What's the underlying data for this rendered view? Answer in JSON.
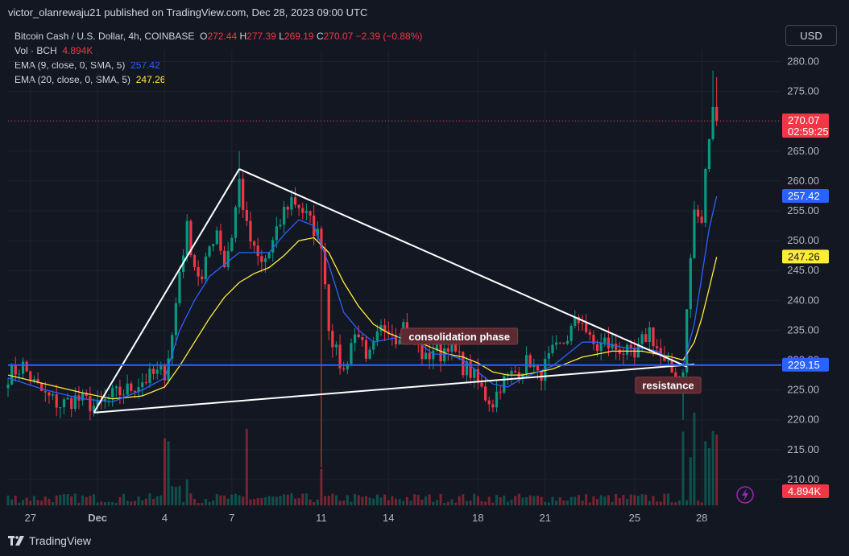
{
  "header": {
    "published": "victor_olanrewaju21 published on TradingView.com, Dec 28, 2023 09:00 UTC"
  },
  "currency_button": "USD",
  "legend": {
    "symbol": "Bitcoin Cash / U.S. Dollar, 4h, COINBASE",
    "o_label": "O",
    "o_value": "272.44",
    "h_label": "H",
    "h_value": "277.39",
    "l_label": "L",
    "l_value": "269.19",
    "c_label": "C",
    "c_value": "270.07",
    "change": "−2.39 (−0.88%)",
    "vol_label": "Vol · BCH",
    "vol_value": "4.894K",
    "ema9_label": "EMA (9, close, 0, SMA, 5)",
    "ema9_value": "257.42",
    "ema20_label": "EMA (20, close, 0, SMA, 5)",
    "ema20_value": "247.26"
  },
  "footer": {
    "brand": "TradingView"
  },
  "chart_data": {
    "type": "candlestick",
    "timeframe": "4h",
    "y_ticks": [
      "280.00",
      "275.00",
      "270.00",
      "265.00",
      "260.00",
      "255.00",
      "250.00",
      "245.00",
      "240.00",
      "235.00",
      "230.00",
      "225.00",
      "220.00",
      "215.00",
      "210.00"
    ],
    "ylim": [
      207.5,
      282
    ],
    "x_ticks": [
      {
        "label": "27",
        "idx": 6
      },
      {
        "label": "Dec",
        "idx": 24
      },
      {
        "label": "4",
        "idx": 42
      },
      {
        "label": "7",
        "idx": 60
      },
      {
        "label": "11",
        "idx": 84
      },
      {
        "label": "14",
        "idx": 102
      },
      {
        "label": "18",
        "idx": 126
      },
      {
        "label": "21",
        "idx": 144
      },
      {
        "label": "25",
        "idx": 168
      },
      {
        "label": "28",
        "idx": 186
      }
    ],
    "price_labels": {
      "last": {
        "value": "270.07",
        "countdown": "02:59:25",
        "color": "#f23645"
      },
      "ema9": {
        "value": "257.42",
        "color": "#2962ff"
      },
      "ema20": {
        "value": "247.26",
        "color": "#ffeb3b"
      },
      "hline": {
        "value": "229.15",
        "color": "#2962ff"
      },
      "volume": {
        "value": "4.894K",
        "color": "#f23645"
      }
    },
    "horizontal_line": 229.15,
    "last_price": 270.07,
    "annotations": [
      {
        "text": "consolidation phase",
        "idx": 121,
        "price": 234.0
      },
      {
        "text": "resistance",
        "idx": 177,
        "price": 225.8
      }
    ],
    "trendlines": [
      {
        "from": [
          23,
          221.2
        ],
        "to": [
          62,
          262
        ]
      },
      {
        "from": [
          62,
          262
        ],
        "to": [
          182,
          228.9
        ]
      },
      {
        "from": [
          23,
          221.2
        ],
        "to": [
          184,
          229.3
        ]
      }
    ],
    "waypoints": [
      [
        0,
        227.5
      ],
      [
        4,
        229
      ],
      [
        7,
        226
      ],
      [
        10,
        224
      ],
      [
        14,
        222.5
      ],
      [
        18,
        223.5
      ],
      [
        21,
        223
      ],
      [
        24,
        222
      ],
      [
        28,
        224
      ],
      [
        32,
        225
      ],
      [
        36,
        226.5
      ],
      [
        39,
        227.5
      ],
      [
        42,
        228
      ],
      [
        44,
        234
      ],
      [
        46,
        245
      ],
      [
        48,
        252
      ],
      [
        50,
        246
      ],
      [
        52,
        243
      ],
      [
        54,
        249
      ],
      [
        56,
        252
      ],
      [
        58,
        246
      ],
      [
        60,
        251
      ],
      [
        62,
        260
      ],
      [
        64,
        252
      ],
      [
        66,
        248
      ],
      [
        68,
        246
      ],
      [
        70,
        248
      ],
      [
        72,
        251
      ],
      [
        74,
        255
      ],
      [
        76,
        257
      ],
      [
        78,
        256
      ],
      [
        80,
        254
      ],
      [
        82,
        252
      ],
      [
        84,
        250
      ],
      [
        86,
        236
      ],
      [
        88,
        231
      ],
      [
        90,
        228
      ],
      [
        92,
        233
      ],
      [
        94,
        235
      ],
      [
        96,
        229
      ],
      [
        98,
        232
      ],
      [
        100,
        235
      ],
      [
        102,
        236
      ],
      [
        104,
        234
      ],
      [
        106,
        236
      ],
      [
        108,
        234
      ],
      [
        110,
        232
      ],
      [
        112,
        230
      ],
      [
        114,
        232
      ],
      [
        116,
        231
      ],
      [
        118,
        233
      ],
      [
        120,
        231
      ],
      [
        122,
        229
      ],
      [
        124,
        228
      ],
      [
        126,
        226
      ],
      [
        128,
        224
      ],
      [
        130,
        223
      ],
      [
        132,
        226
      ],
      [
        134,
        227
      ],
      [
        136,
        228
      ],
      [
        138,
        229
      ],
      [
        140,
        230
      ],
      [
        142,
        227
      ],
      [
        144,
        229
      ],
      [
        146,
        231
      ],
      [
        148,
        232
      ],
      [
        150,
        234
      ],
      [
        152,
        236
      ],
      [
        154,
        237
      ],
      [
        156,
        233
      ],
      [
        158,
        232
      ],
      [
        160,
        233
      ],
      [
        162,
        232
      ],
      [
        164,
        232
      ],
      [
        166,
        231
      ],
      [
        168,
        230
      ],
      [
        170,
        233
      ],
      [
        172,
        235
      ],
      [
        174,
        232
      ],
      [
        176,
        229
      ],
      [
        178,
        228
      ],
      [
        180,
        227
      ],
      [
        181,
        229
      ],
      [
        182,
        238
      ],
      [
        183,
        247
      ],
      [
        184,
        255
      ],
      [
        185,
        254
      ],
      [
        186,
        253
      ],
      [
        187,
        262
      ],
      [
        188,
        267
      ],
      [
        189,
        272.4
      ],
      [
        190,
        270.07
      ]
    ],
    "ema9_points": [
      [
        0,
        227
      ],
      [
        10,
        225
      ],
      [
        20,
        223.5
      ],
      [
        28,
        223
      ],
      [
        36,
        225
      ],
      [
        42,
        227
      ],
      [
        46,
        235
      ],
      [
        50,
        240
      ],
      [
        54,
        244
      ],
      [
        58,
        246
      ],
      [
        62,
        248
      ],
      [
        66,
        248
      ],
      [
        70,
        248
      ],
      [
        74,
        251
      ],
      [
        78,
        253.5
      ],
      [
        82,
        252.5
      ],
      [
        86,
        246
      ],
      [
        90,
        238
      ],
      [
        94,
        235
      ],
      [
        98,
        233
      ],
      [
        102,
        233.5
      ],
      [
        106,
        234
      ],
      [
        110,
        233
      ],
      [
        114,
        231
      ],
      [
        118,
        231
      ],
      [
        122,
        230
      ],
      [
        126,
        228
      ],
      [
        130,
        226
      ],
      [
        134,
        225.5
      ],
      [
        138,
        227
      ],
      [
        142,
        228
      ],
      [
        146,
        229
      ],
      [
        150,
        231
      ],
      [
        154,
        233
      ],
      [
        158,
        233
      ],
      [
        162,
        232.5
      ],
      [
        166,
        232
      ],
      [
        170,
        232
      ],
      [
        174,
        231.5
      ],
      [
        178,
        230
      ],
      [
        181,
        229
      ],
      [
        184,
        236
      ],
      [
        186,
        244
      ],
      [
        188,
        252
      ],
      [
        190,
        257.42
      ]
    ],
    "ema20_points": [
      [
        0,
        227.5
      ],
      [
        10,
        226
      ],
      [
        20,
        224.5
      ],
      [
        28,
        223.5
      ],
      [
        36,
        224
      ],
      [
        42,
        225.5
      ],
      [
        46,
        229
      ],
      [
        50,
        233
      ],
      [
        54,
        237
      ],
      [
        58,
        240.5
      ],
      [
        62,
        243
      ],
      [
        66,
        244.5
      ],
      [
        70,
        245.5
      ],
      [
        74,
        247.5
      ],
      [
        78,
        250
      ],
      [
        82,
        250.5
      ],
      [
        86,
        248
      ],
      [
        90,
        243
      ],
      [
        94,
        239
      ],
      [
        98,
        236
      ],
      [
        102,
        234.5
      ],
      [
        106,
        233.5
      ],
      [
        110,
        233
      ],
      [
        114,
        232
      ],
      [
        118,
        231
      ],
      [
        122,
        230.5
      ],
      [
        126,
        229.5
      ],
      [
        130,
        228
      ],
      [
        134,
        227.5
      ],
      [
        138,
        227.5
      ],
      [
        142,
        228
      ],
      [
        146,
        228.5
      ],
      [
        150,
        229.5
      ],
      [
        154,
        230.5
      ],
      [
        158,
        231
      ],
      [
        162,
        231.5
      ],
      [
        166,
        231.5
      ],
      [
        170,
        231.5
      ],
      [
        174,
        231
      ],
      [
        178,
        230.5
      ],
      [
        181,
        230
      ],
      [
        184,
        233
      ],
      [
        186,
        237
      ],
      [
        188,
        242
      ],
      [
        190,
        247.26
      ]
    ]
  }
}
